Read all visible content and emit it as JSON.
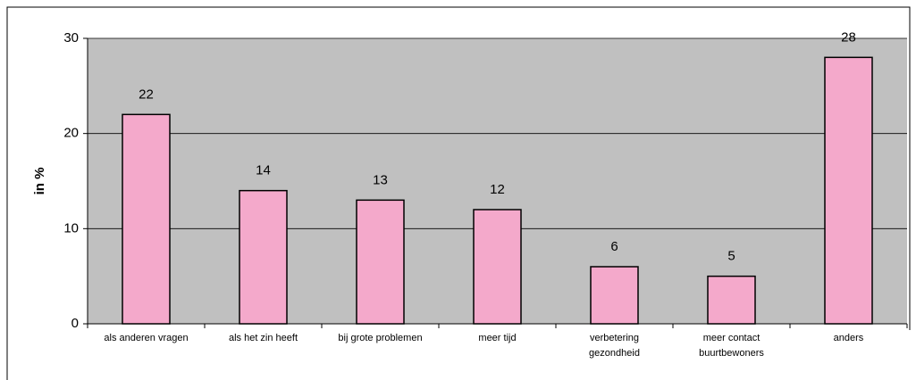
{
  "chart_data": {
    "type": "bar",
    "ylabel": "in %",
    "categories": [
      "als anderen vragen",
      "als het zin heeft",
      "bij grote problemen",
      "meer tijd",
      "verbetering\ngezondheid",
      "meer contact\nbuurtbewoners",
      "anders"
    ],
    "values": [
      22,
      14,
      13,
      12,
      6,
      5,
      28
    ],
    "color": "#f4a9cb",
    "ylim": [
      0,
      30
    ],
    "yticks": [
      0,
      10,
      20,
      30
    ],
    "grid": true
  }
}
